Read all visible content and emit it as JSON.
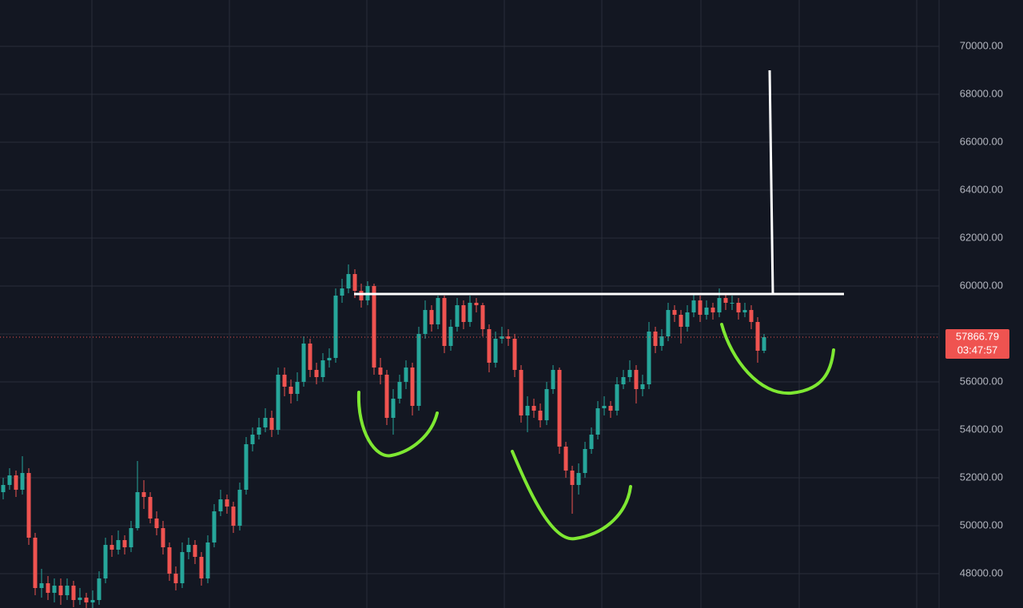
{
  "chart_data": {
    "type": "candlestick",
    "up_color": "#26a69a",
    "down_color": "#ef5350",
    "grid": true,
    "ylim": [
      46567,
      71933
    ],
    "yticks": [
      {
        "value": 48000,
        "label": "48000.00"
      },
      {
        "value": 50000,
        "label": "50000.00"
      },
      {
        "value": 52000,
        "label": "52000.00"
      },
      {
        "value": 54000,
        "label": "54000.00"
      },
      {
        "value": 56000,
        "label": "56000.00"
      },
      {
        "value": 58000,
        "label": "58000.00"
      },
      {
        "value": 60000,
        "label": "60000.00"
      },
      {
        "value": 62000,
        "label": "62000.00"
      },
      {
        "value": 64000,
        "label": "64000.00"
      },
      {
        "value": 66000,
        "label": "66000.00"
      },
      {
        "value": 68000,
        "label": "68000.00"
      },
      {
        "value": 70000,
        "label": "70000.00"
      }
    ],
    "open": [
      51400,
      51700,
      52100,
      51500,
      52200,
      49500,
      47400,
      47600,
      47200,
      47500,
      47100,
      47500,
      46900,
      47000,
      46800,
      46900,
      47800,
      49200,
      49000,
      49400,
      49100,
      49900,
      51400,
      51200,
      50300,
      49900,
      49100,
      48000,
      47600,
      48900,
      49200,
      48700,
      47800,
      49300,
      50600,
      51100,
      50800,
      50000,
      51500,
      53400,
      53800,
      54100,
      54500,
      54000,
      56300,
      55800,
      55500,
      56000,
      57600,
      56500,
      56200,
      56900,
      57000,
      59600,
      59900,
      60500,
      59800,
      59400,
      60000,
      56600,
      56300,
      54500,
      55300,
      56000,
      56600,
      55000,
      58000,
      59000,
      58400,
      59500,
      57500,
      58300,
      59200,
      58500,
      59300,
      59200,
      58200,
      56800,
      57800,
      57900,
      57800,
      56500,
      54600,
      55000,
      54800,
      54400,
      55700,
      56500,
      53300,
      52300,
      51700,
      52200,
      53200,
      53800,
      54900,
      55000,
      54800,
      55900,
      56200,
      56500,
      55700,
      55900,
      58100,
      57500,
      57900,
      59000,
      58800,
      58300,
      58900,
      59400,
      58800,
      59100,
      58900,
      59500,
      59300,
      59300,
      58900,
      59000,
      58500,
      57300
    ],
    "high": [
      52000,
      52400,
      52300,
      52900,
      52400,
      49700,
      48200,
      47900,
      47800,
      47800,
      47800,
      47700,
      47400,
      47200,
      47300,
      48100,
      49500,
      49600,
      49800,
      49600,
      50200,
      52700,
      51900,
      51400,
      50600,
      50200,
      49300,
      48300,
      49300,
      49500,
      49400,
      48900,
      49600,
      50900,
      51500,
      51300,
      51000,
      51800,
      53700,
      54100,
      54500,
      54900,
      54800,
      56600,
      56600,
      56100,
      56400,
      57900,
      57800,
      56800,
      57200,
      57400,
      59900,
      60300,
      60900,
      60700,
      60100,
      60200,
      60100,
      57000,
      56500,
      55700,
      56300,
      56900,
      56800,
      58300,
      59400,
      59200,
      59600,
      59600,
      58600,
      59500,
      59400,
      59600,
      59500,
      59300,
      58400,
      58100,
      58300,
      58200,
      58000,
      56700,
      55400,
      55300,
      55100,
      56000,
      56700,
      56600,
      53500,
      52500,
      52600,
      53500,
      54100,
      55200,
      55400,
      55200,
      56200,
      56500,
      56900,
      56700,
      56300,
      58500,
      58300,
      58200,
      59300,
      59200,
      59000,
      59200,
      59700,
      59600,
      59400,
      59300,
      59900,
      59700,
      59600,
      59500,
      59300,
      59200,
      58700,
      58000
    ],
    "low": [
      51100,
      51500,
      51200,
      51300,
      49200,
      47100,
      47000,
      46900,
      46800,
      46700,
      46900,
      46600,
      46700,
      46500,
      46500,
      46700,
      47600,
      48700,
      48800,
      48800,
      48900,
      49800,
      50700,
      50100,
      49600,
      48800,
      47700,
      47300,
      47400,
      48600,
      48400,
      47500,
      47600,
      49100,
      50400,
      50500,
      49700,
      49800,
      51300,
      53100,
      53600,
      53900,
      53700,
      53800,
      55400,
      55100,
      55200,
      55800,
      56200,
      55900,
      56000,
      56600,
      56800,
      59300,
      59700,
      59500,
      59100,
      59200,
      56300,
      55900,
      54200,
      53800,
      55100,
      55700,
      54600,
      54800,
      57800,
      58100,
      58200,
      57200,
      57300,
      58100,
      58200,
      58300,
      58900,
      57900,
      56400,
      56600,
      57600,
      57500,
      56200,
      54300,
      53900,
      54500,
      54100,
      54200,
      55500,
      53000,
      52000,
      50500,
      51300,
      52000,
      53000,
      53600,
      54600,
      54500,
      54600,
      55700,
      56000,
      55100,
      55400,
      55700,
      57200,
      57300,
      57700,
      58500,
      57600,
      58100,
      58700,
      58500,
      58600,
      58600,
      58700,
      59000,
      59000,
      58600,
      58700,
      58200,
      56800,
      57200
    ],
    "close": [
      51700,
      52100,
      51500,
      52200,
      49500,
      47400,
      47600,
      47200,
      47500,
      47100,
      47500,
      46900,
      47000,
      46800,
      46900,
      47800,
      49200,
      49000,
      49400,
      49100,
      49900,
      51400,
      51200,
      50300,
      49900,
      49100,
      48000,
      47600,
      48900,
      49200,
      48700,
      47800,
      49300,
      50600,
      51100,
      50800,
      50000,
      51500,
      53400,
      53800,
      54100,
      54500,
      54000,
      56300,
      55800,
      55500,
      56000,
      57600,
      56500,
      56200,
      56900,
      57000,
      59600,
      59900,
      60500,
      59800,
      59400,
      60000,
      56600,
      56300,
      54500,
      55300,
      56000,
      56600,
      55000,
      58000,
      59000,
      58400,
      59500,
      57500,
      58300,
      59200,
      58500,
      59300,
      59200,
      58200,
      56800,
      57800,
      57900,
      57800,
      56500,
      54600,
      55000,
      54800,
      54400,
      55700,
      56500,
      53300,
      52300,
      51700,
      52200,
      53200,
      53800,
      54900,
      55000,
      54800,
      55900,
      56200,
      56500,
      55700,
      55900,
      58100,
      57500,
      57900,
      59000,
      58800,
      58300,
      58900,
      59400,
      58800,
      59100,
      58900,
      59500,
      59300,
      59300,
      58900,
      59000,
      58500,
      57300,
      57866.79
    ],
    "countdown": "03:47:57"
  }
}
